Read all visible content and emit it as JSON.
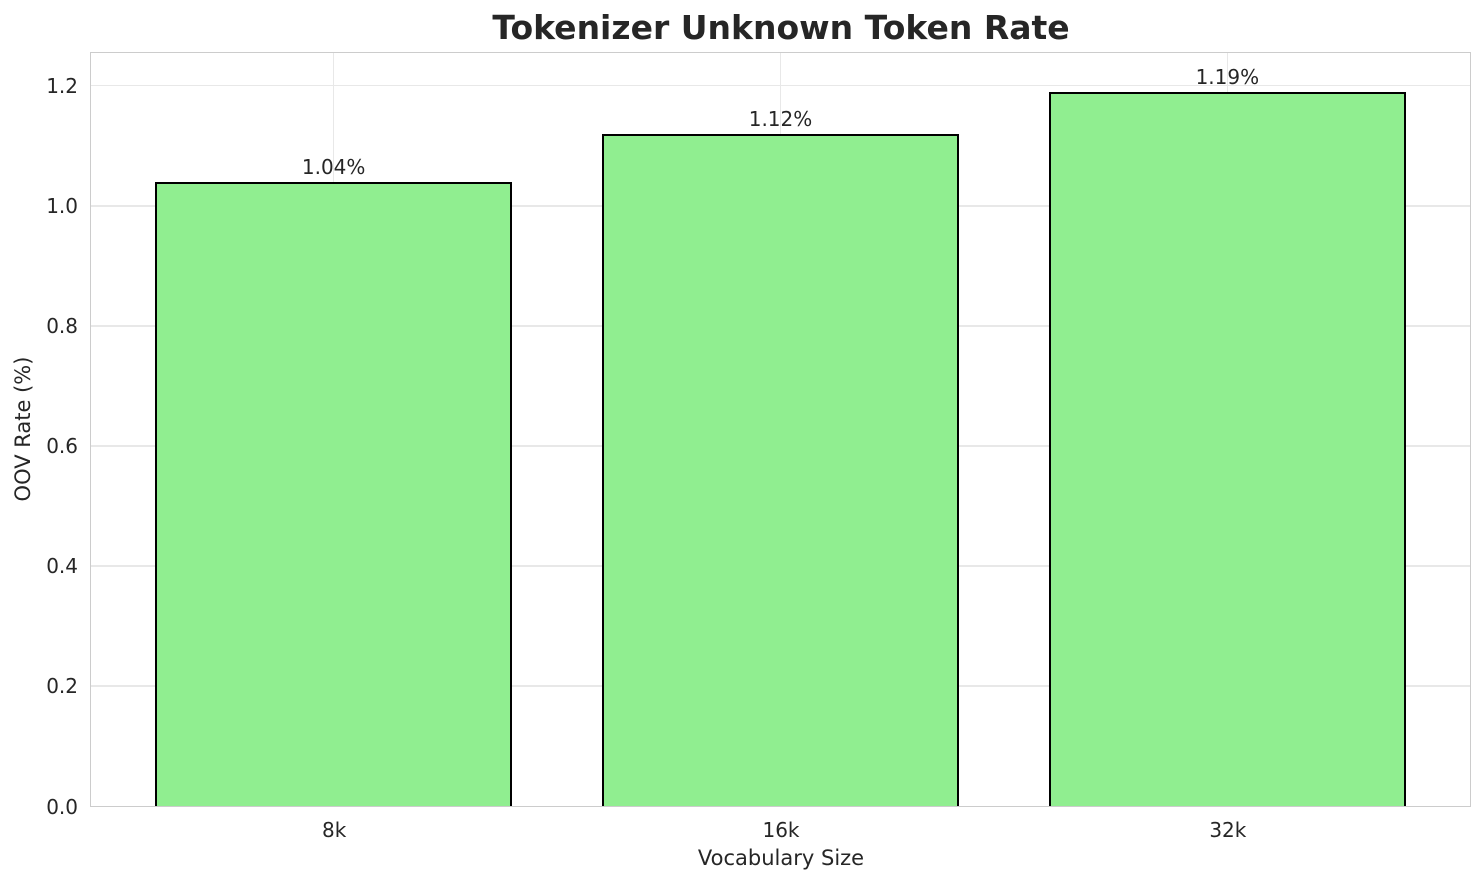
{
  "chart_data": {
    "type": "bar",
    "title": "Tokenizer Unknown Token Rate",
    "xlabel": "Vocabulary Size",
    "ylabel": "OOV Rate (%)",
    "categories": [
      "8k",
      "16k",
      "32k"
    ],
    "values": [
      1.04,
      1.12,
      1.19
    ],
    "bar_labels": [
      "1.04%",
      "1.12%",
      "1.19%"
    ],
    "ytick_values": [
      0.0,
      0.2,
      0.4,
      0.6,
      0.8,
      1.0,
      1.2
    ],
    "ytick_labels": [
      "0.0",
      "0.2",
      "0.4",
      "0.6",
      "0.8",
      "1.0",
      "1.2"
    ],
    "ylim": [
      0,
      1.2545
    ],
    "xlim": [
      -0.543,
      2.543
    ],
    "bar_width": 0.8,
    "grid": true,
    "legend_position": "none",
    "colors": {
      "bar_fill": "#90EE90",
      "bar_edge": "#000000",
      "grid": "#e8e8e8",
      "spine": "#cccccc",
      "text": "#262626",
      "background": "#ffffff"
    }
  }
}
